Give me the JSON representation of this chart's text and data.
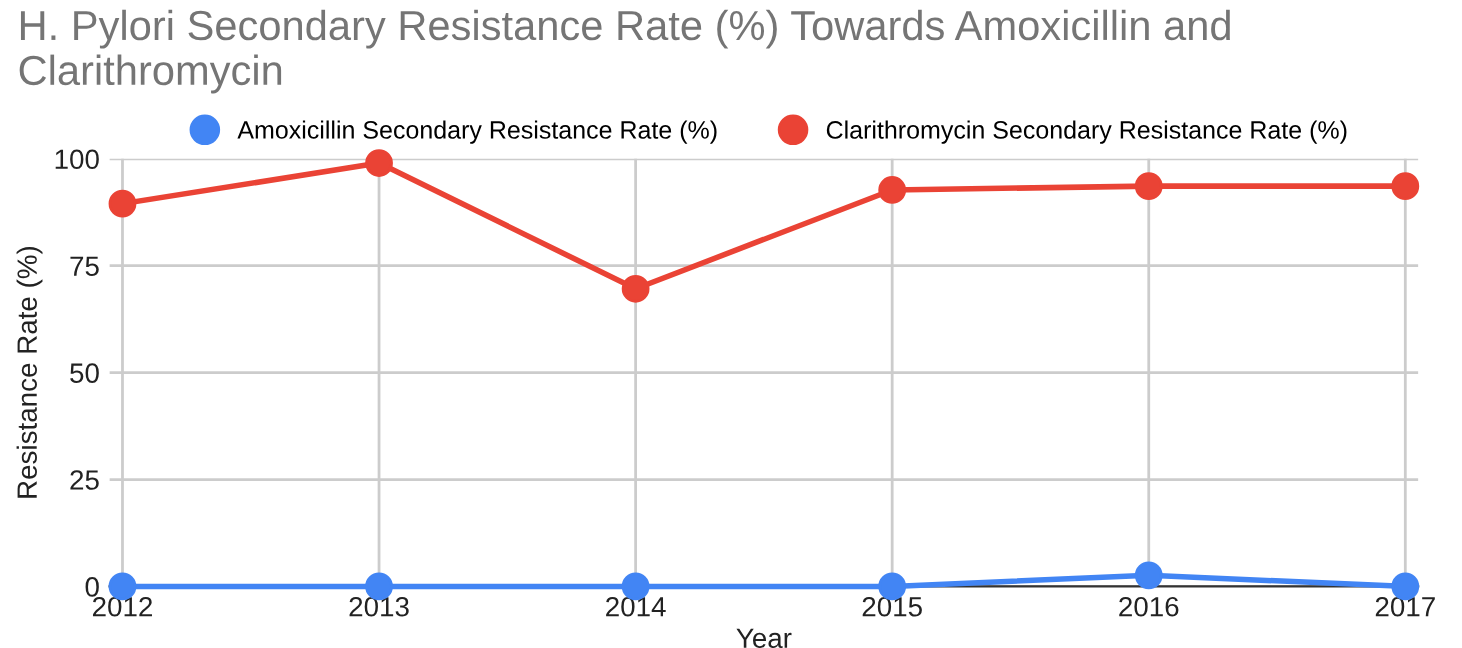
{
  "chart_data": {
    "type": "line",
    "title": "H. Pylori Secondary Resistance Rate (%) Towards Amoxicillin and Clarithromycin",
    "xlabel": "Year",
    "ylabel": "Resistance Rate (%)",
    "categories": [
      "2012",
      "2013",
      "2014",
      "2015",
      "2016",
      "2017"
    ],
    "series": [
      {
        "name": "Amoxicillin Secondary Resistance Rate (%)",
        "color": "#4285f4",
        "values": [
          0,
          0,
          0,
          0,
          2.6,
          0
        ]
      },
      {
        "name": "Clarithromycin Secondary Resistance Rate (%)",
        "color": "#ea4335",
        "values": [
          89.5,
          99,
          69.6,
          92.7,
          93.6,
          93.6
        ]
      }
    ],
    "ylim": [
      0,
      100
    ],
    "yticks": [
      0,
      25,
      50,
      75,
      100
    ],
    "grid": true,
    "legend": "top",
    "marker": "circle",
    "line_style": "solid"
  }
}
